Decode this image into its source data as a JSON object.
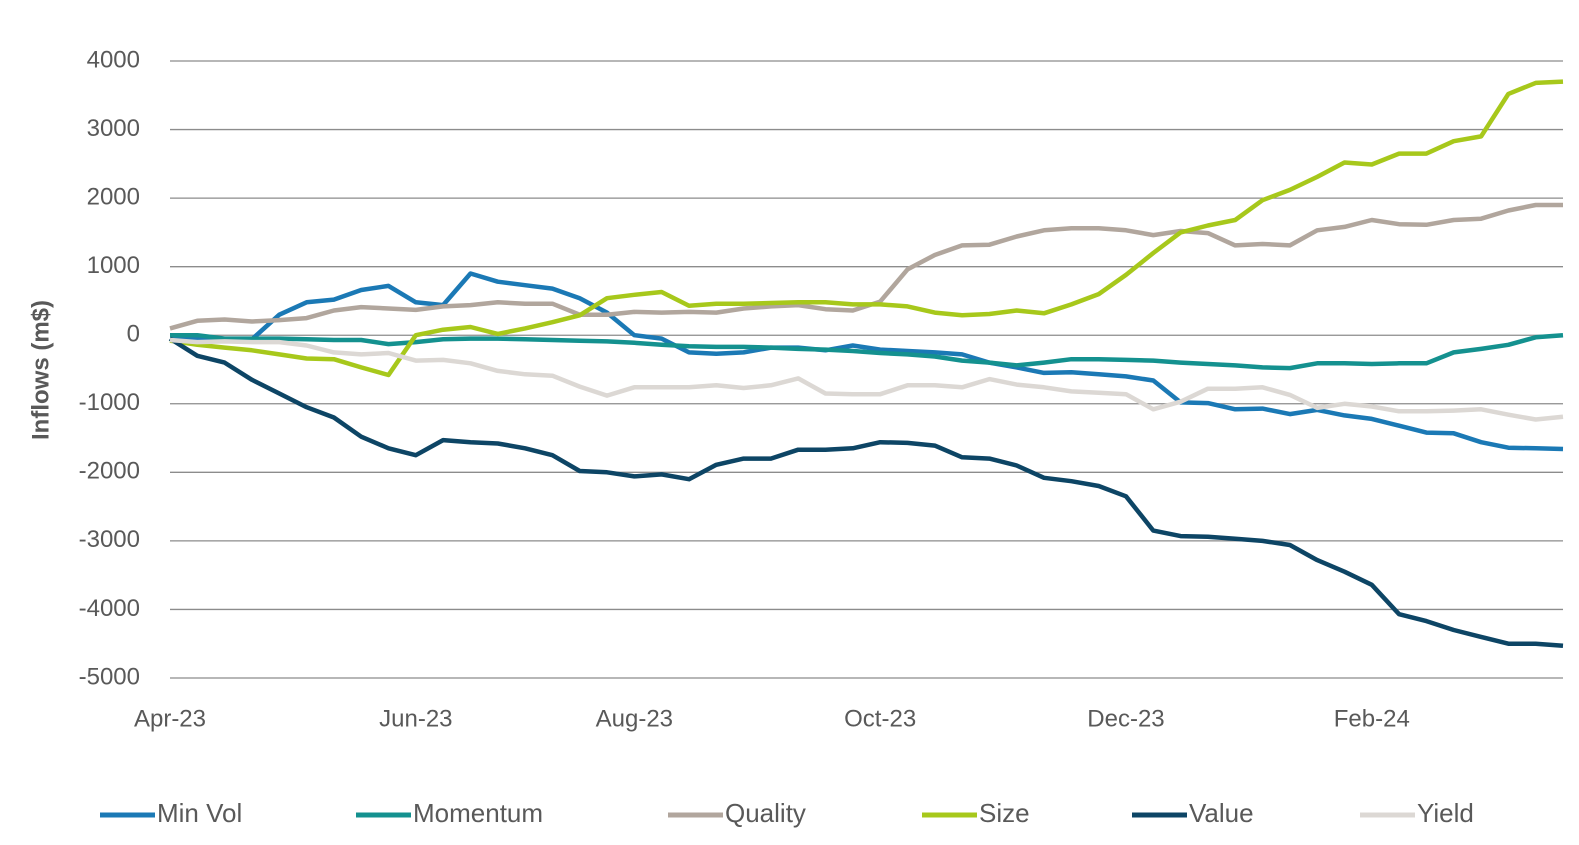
{
  "chart_data": {
    "type": "line",
    "y_label": "Inflows (m$)",
    "categories": [
      "Apr-23",
      null,
      null,
      null,
      null,
      null,
      null,
      null,
      null,
      "Jun-23",
      null,
      null,
      null,
      null,
      null,
      null,
      null,
      "Aug-23",
      null,
      null,
      null,
      null,
      null,
      null,
      null,
      null,
      "Oct-23",
      null,
      null,
      null,
      null,
      null,
      null,
      null,
      null,
      "Dec-23",
      null,
      null,
      null,
      null,
      null,
      null,
      null,
      null,
      "Feb-24",
      null,
      null,
      null,
      null,
      null,
      null,
      null
    ],
    "ylim": [
      -5000,
      4000
    ],
    "yticks": [
      -5000,
      -4000,
      -3000,
      -2000,
      -1000,
      0,
      1000,
      2000,
      3000,
      4000
    ],
    "grid": true,
    "legend": "bottom",
    "series": [
      {
        "name": "Min Vol",
        "color": "#1b79b5",
        "values": [
          -50,
          -50,
          -80,
          -60,
          300,
          480,
          520,
          660,
          720,
          480,
          440,
          900,
          780,
          730,
          680,
          540,
          330,
          0,
          -50,
          -250,
          -270,
          -250,
          -180,
          -180,
          -220,
          -150,
          -210,
          -230,
          -250,
          -280,
          -400,
          -470,
          -550,
          -540,
          -570,
          -600,
          -660,
          -980,
          -990,
          -1080,
          -1070,
          -1150,
          -1090,
          -1170,
          -1220,
          -1320,
          -1420,
          -1430,
          -1560,
          -1640,
          -1650,
          -1660
        ]
      },
      {
        "name": "Momentum",
        "color": "#14918f",
        "values": [
          0,
          0,
          -50,
          -50,
          -50,
          -60,
          -70,
          -70,
          -130,
          -100,
          -60,
          -50,
          -50,
          -60,
          -70,
          -80,
          -90,
          -110,
          -140,
          -160,
          -170,
          -170,
          -180,
          -200,
          -210,
          -230,
          -260,
          -280,
          -310,
          -370,
          -400,
          -440,
          -400,
          -350,
          -350,
          -360,
          -370,
          -400,
          -420,
          -440,
          -470,
          -480,
          -410,
          -410,
          -420,
          -410,
          -410,
          -250,
          -200,
          -140,
          -30,
          0
        ]
      },
      {
        "name": "Quality",
        "color": "#b1a69d",
        "values": [
          100,
          210,
          230,
          200,
          220,
          250,
          360,
          410,
          390,
          370,
          420,
          440,
          480,
          460,
          460,
          300,
          300,
          340,
          330,
          340,
          330,
          390,
          420,
          440,
          380,
          360,
          490,
          960,
          1170,
          1310,
          1320,
          1440,
          1530,
          1560,
          1560,
          1530,
          1460,
          1520,
          1490,
          1310,
          1330,
          1310,
          1530,
          1580,
          1680,
          1620,
          1610,
          1680,
          1700,
          1820,
          1900,
          1900
        ]
      },
      {
        "name": "Size",
        "color": "#a7c81b",
        "values": [
          -80,
          -140,
          -180,
          -220,
          -280,
          -340,
          -350,
          -470,
          -580,
          0,
          80,
          120,
          20,
          100,
          190,
          290,
          540,
          590,
          630,
          430,
          460,
          460,
          470,
          480,
          480,
          450,
          450,
          420,
          330,
          290,
          310,
          360,
          320,
          450,
          600,
          880,
          1200,
          1500,
          1600,
          1680,
          1970,
          2120,
          2310,
          2520,
          2490,
          2650,
          2650,
          2830,
          2900,
          3520,
          3680,
          3700
        ]
      },
      {
        "name": "Value",
        "color": "#0d4565",
        "values": [
          -50,
          -300,
          -400,
          -650,
          -850,
          -1050,
          -1200,
          -1480,
          -1650,
          -1750,
          -1530,
          -1560,
          -1580,
          -1650,
          -1750,
          -1980,
          -2000,
          -2060,
          -2030,
          -2100,
          -1890,
          -1800,
          -1800,
          -1670,
          -1670,
          -1650,
          -1560,
          -1570,
          -1610,
          -1780,
          -1800,
          -1900,
          -2080,
          -2130,
          -2200,
          -2350,
          -2850,
          -2930,
          -2940,
          -2970,
          -3000,
          -3060,
          -3280,
          -3450,
          -3640,
          -4070,
          -4170,
          -4300,
          -4400,
          -4500,
          -4500,
          -4530
        ]
      },
      {
        "name": "Yield",
        "color": "#dcd8d4",
        "values": [
          -70,
          -100,
          -90,
          -100,
          -100,
          -150,
          -250,
          -280,
          -260,
          -370,
          -360,
          -410,
          -520,
          -570,
          -590,
          -750,
          -880,
          -760,
          -760,
          -760,
          -730,
          -770,
          -730,
          -630,
          -850,
          -860,
          -860,
          -730,
          -730,
          -760,
          -640,
          -720,
          -760,
          -820,
          -840,
          -860,
          -1080,
          -970,
          -780,
          -780,
          -760,
          -870,
          -1060,
          -1000,
          -1040,
          -1110,
          -1110,
          -1100,
          -1080,
          -1160,
          -1230,
          -1190
        ]
      }
    ]
  }
}
